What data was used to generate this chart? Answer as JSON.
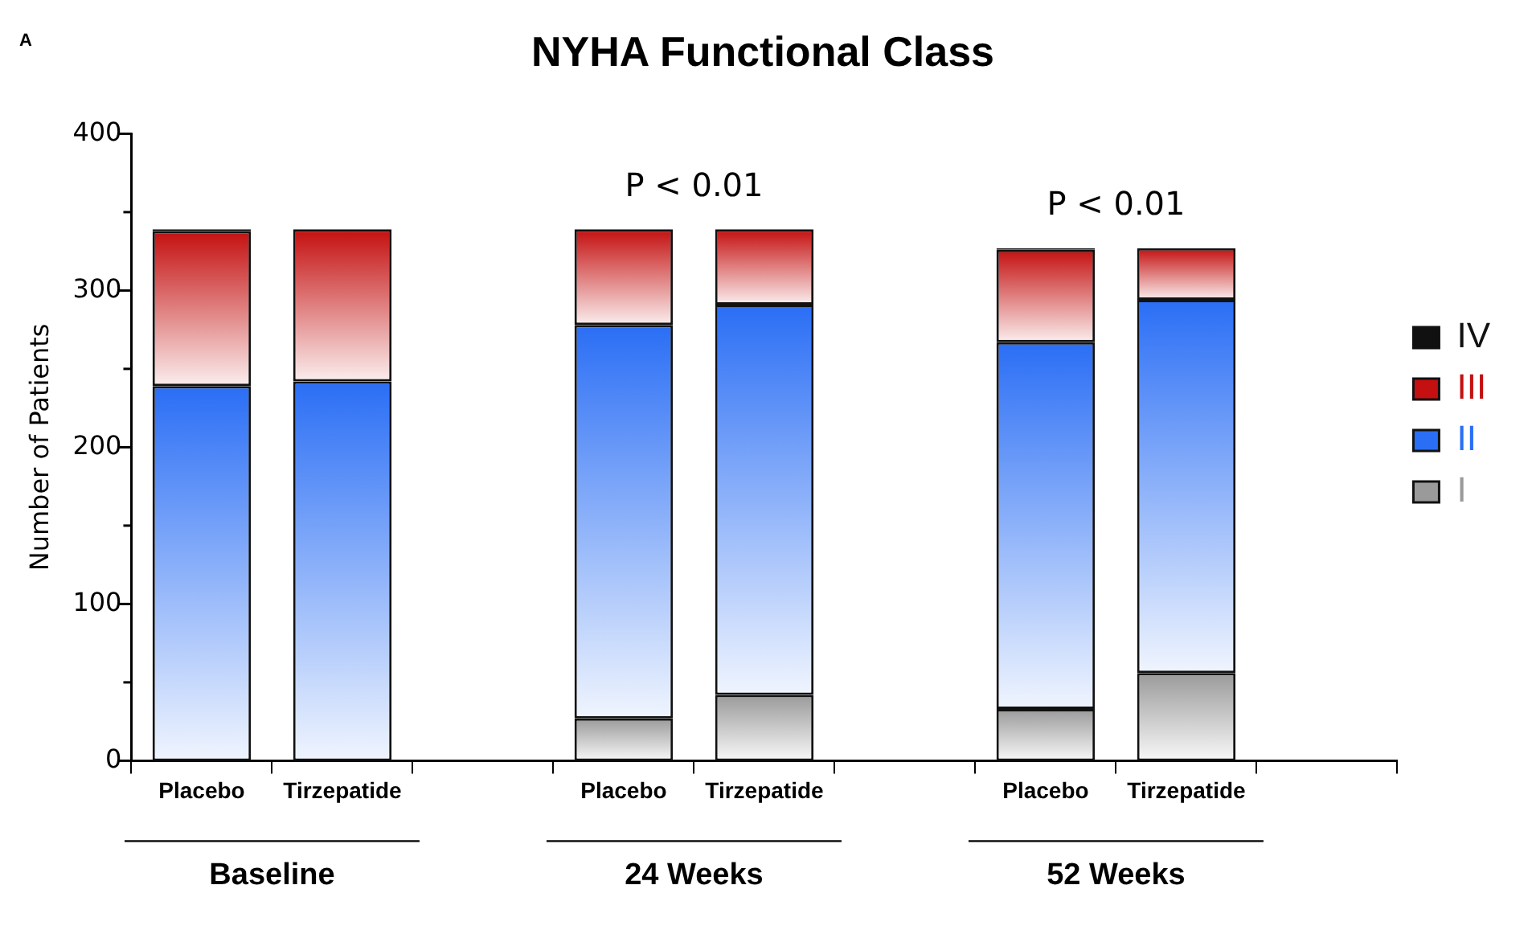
{
  "chart_data": {
    "type": "bar",
    "title": "NYHA Functional Class",
    "ylabel": "Number of Patients",
    "categories": [
      "Placebo",
      "Tirzepatide",
      null,
      "Placebo",
      "Tirzepatide",
      null,
      "Placebo",
      "Tirzepatide",
      null
    ],
    "series": [
      {
        "name": "I",
        "color": "#9a9a9a",
        "values": [
          0,
          0,
          null,
          27,
          42,
          null,
          33,
          56,
          null
        ]
      },
      {
        "name": "II",
        "color": "#2a6ef5",
        "values": [
          239,
          242,
          null,
          251,
          249,
          null,
          234,
          238,
          null
        ]
      },
      {
        "name": "III",
        "color": "#c41010",
        "values": [
          99,
          97,
          null,
          61,
          48,
          null,
          59,
          33,
          null
        ]
      },
      {
        "name": "IV",
        "color": "#111111",
        "values": [
          1,
          0,
          null,
          0,
          0,
          null,
          1,
          0,
          null
        ]
      }
    ],
    "stacked": true,
    "ylim": [
      0,
      400
    ],
    "yticks": [
      0,
      {
        "value": 50,
        "label": null
      },
      100,
      {
        "value": 150,
        "label": null
      },
      200,
      {
        "value": 250,
        "label": null
      },
      300,
      {
        "value": 350,
        "label": null
      },
      400
    ],
    "grid": false,
    "legend": "right",
    "annotations": [
      "A",
      "P < 0.01",
      "P < 0.01",
      "Baseline",
      "24 Weeks",
      "52 Weeks"
    ]
  }
}
